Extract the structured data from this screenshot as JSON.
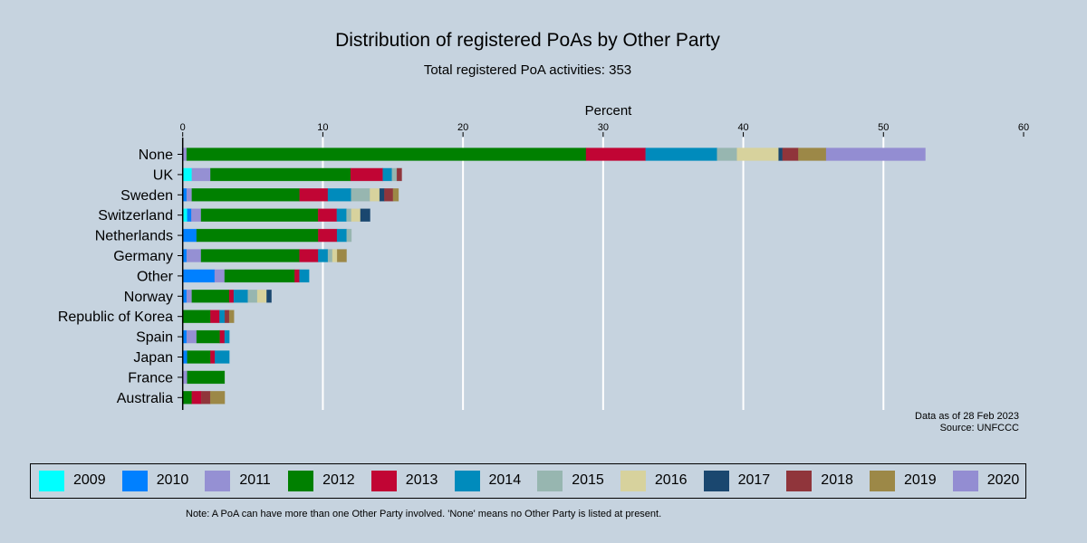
{
  "chart_data": {
    "type": "bar",
    "orientation": "horizontal",
    "stacked": true,
    "title": "Distribution of registered PoAs by Other Party",
    "subtitle": "Total registered PoA activities: 353",
    "xlabel": "Percent",
    "xlim": [
      0,
      60
    ],
    "xticks": [
      0,
      10,
      20,
      30,
      40,
      50,
      60
    ],
    "grid": true,
    "legend_placement": "bottom",
    "categories": [
      "None",
      "UK",
      "Sweden",
      "Switzerland",
      "Netherlands",
      "Germany",
      "Other",
      "Norway",
      "Republic of Korea",
      "Spain",
      "Japan",
      "France",
      "Australia"
    ],
    "series": [
      {
        "name": "2009",
        "color": "#00ffff",
        "values": [
          0,
          0.65,
          0,
          0.32,
          0,
          0,
          0,
          0,
          0,
          0,
          0,
          0,
          0
        ]
      },
      {
        "name": "2010",
        "color": "#0080ff",
        "values": [
          0,
          0,
          0.28,
          0.3,
          0.99,
          0.28,
          2.28,
          0.28,
          0,
          0.28,
          0.32,
          0,
          0
        ]
      },
      {
        "name": "2011",
        "color": "#9590d3",
        "values": [
          0.28,
          1.33,
          0.37,
          0.69,
          0,
          1.03,
          0.71,
          0.37,
          0,
          0.71,
          0,
          0.32,
          0
        ]
      },
      {
        "name": "2012",
        "color": "#008000",
        "values": [
          28.5,
          10.0,
          7.69,
          8.35,
          8.68,
          7.02,
          5.0,
          2.67,
          1.98,
          1.66,
          1.66,
          2.67,
          0.65
        ]
      },
      {
        "name": "2013",
        "color": "#c10534",
        "values": [
          4.25,
          2.3,
          2.02,
          1.34,
          1.34,
          1.34,
          0.34,
          0.32,
          0.65,
          0.34,
          0.32,
          0,
          0.67
        ]
      },
      {
        "name": "2014",
        "color": "#008bbc",
        "values": [
          5.1,
          0.65,
          1.66,
          0.69,
          0.69,
          0.69,
          0.69,
          1.01,
          0.37,
          0.34,
          1.03,
          0,
          0
        ]
      },
      {
        "name": "2015",
        "color": "#97b6b0",
        "values": [
          1.42,
          0.35,
          1.34,
          0.34,
          0.34,
          0.32,
          0,
          0.67,
          0,
          0,
          0,
          0,
          0
        ]
      },
      {
        "name": "2016",
        "color": "#d7d29d",
        "values": [
          2.97,
          0,
          0.69,
          0.65,
          0,
          0.34,
          0,
          0.67,
          0,
          0,
          0,
          0,
          0
        ]
      },
      {
        "name": "2017",
        "color": "#1a476f",
        "values": [
          0.28,
          0,
          0.34,
          0.69,
          0,
          0,
          0,
          0.34,
          0,
          0,
          0,
          0,
          0
        ]
      },
      {
        "name": "2018",
        "color": "#90353b",
        "values": [
          1.13,
          0.35,
          0.62,
          0,
          0,
          0,
          0,
          0,
          0.32,
          0,
          0,
          0,
          0.65
        ]
      },
      {
        "name": "2019",
        "color": "#9c8847",
        "values": [
          1.98,
          0,
          0.39,
          0,
          0,
          0.67,
          0,
          0,
          0.34,
          0,
          0,
          0,
          1.03
        ]
      },
      {
        "name": "2020",
        "color": "#938dd2",
        "values": [
          7.08,
          0,
          0,
          0,
          0,
          0,
          0,
          0,
          0,
          0,
          0,
          0,
          0
        ]
      }
    ],
    "annotation": [
      "Data as of 28 Feb 2023",
      "Source: UNFCCC"
    ],
    "footnote": "Note: A PoA can have more than one Other Party involved. 'None' means no Other Party is listed at present."
  }
}
